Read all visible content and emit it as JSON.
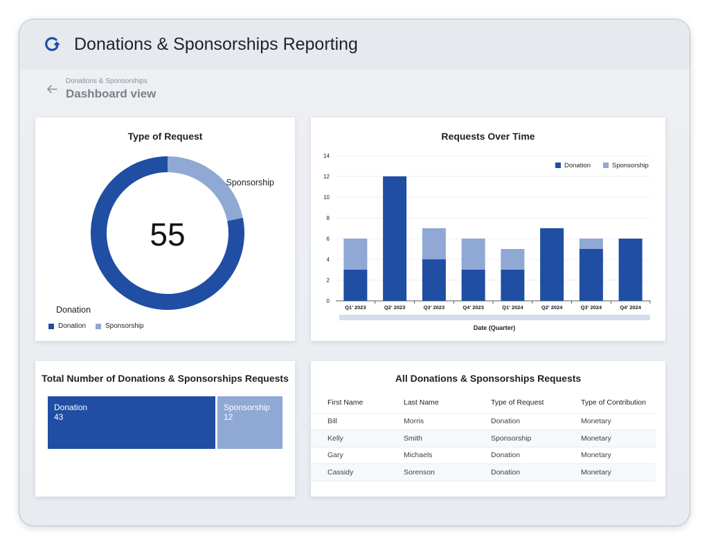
{
  "app": {
    "title": "Donations & Sponsorships Reporting",
    "breadcrumb": "Donations & Sponsorships",
    "page_title": "Dashboard view"
  },
  "colors": {
    "donation": "#1f4ea3",
    "sponsorship": "#8fa8d4",
    "axis_band": "#d3ddeb"
  },
  "icons": {
    "logo": "refresh-logo-icon",
    "back": "arrow-left-icon"
  },
  "type_of_request": {
    "title": "Type of Request",
    "total": "55",
    "label_donation": "Donation",
    "label_sponsorship": "Sponsorship",
    "legend": [
      "Donation",
      "Sponsorship"
    ]
  },
  "requests_over_time": {
    "title": "Requests Over Time"
  },
  "totals": {
    "title": "Total Number of Donations & Sponsorships Requests",
    "tiles": [
      {
        "label": "Donation",
        "value": "43"
      },
      {
        "label": "Sponsorship",
        "value": "12"
      }
    ]
  },
  "requests_table": {
    "title": "All Donations & Sponsorships Requests",
    "columns": [
      "First Name",
      "Last Name",
      "Type of Request",
      "Type of Contribution"
    ],
    "rows": [
      [
        "Bill",
        "Morris",
        "Donation",
        "Monetary"
      ],
      [
        "Kelly",
        "Smith",
        "Sponsorship",
        "Monetary"
      ],
      [
        "Gary",
        "Michaels",
        "Donation",
        "Monetary"
      ],
      [
        "Cassidy",
        "Sorenson",
        "Donation",
        "Monetary"
      ]
    ]
  },
  "chart_data": [
    {
      "type": "pie",
      "title": "Type of Request",
      "categories": [
        "Donation",
        "Sponsorship"
      ],
      "values": [
        43,
        12
      ],
      "center_label": "55",
      "legend_position": "bottom-left"
    },
    {
      "type": "bar",
      "stacked": true,
      "title": "Requests Over Time",
      "xlabel": "Date (Quarter)",
      "ylabel": "",
      "categories": [
        "Q1' 2023",
        "Q2' 2023",
        "Q3' 2023",
        "Q4' 2023",
        "Q1' 2024",
        "Q2' 2024",
        "Q3' 2024",
        "Q4' 2024"
      ],
      "series": [
        {
          "name": "Donation",
          "values": [
            3,
            12,
            4,
            3,
            3,
            7,
            5,
            6
          ]
        },
        {
          "name": "Sponsorship",
          "values": [
            3,
            0,
            3,
            3,
            2,
            0,
            1,
            0
          ]
        }
      ],
      "ylim": [
        0,
        14
      ],
      "yticks": [
        0,
        2,
        4,
        6,
        8,
        10,
        12,
        14
      ],
      "grid": true,
      "legend_position": "top-right"
    }
  ]
}
